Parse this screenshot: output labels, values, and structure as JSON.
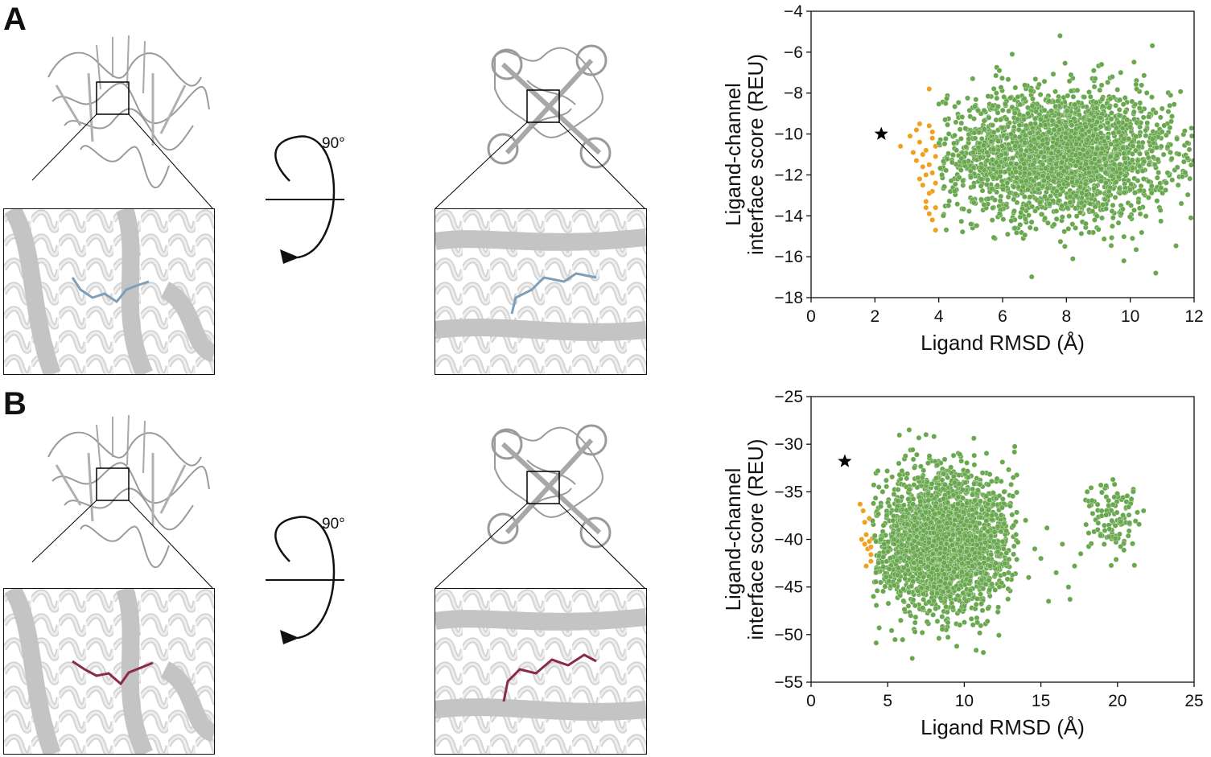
{
  "panels": [
    {
      "letter": "A",
      "rotation_label": "90°",
      "ligand_color": "#7f9fb8",
      "chart_data": {
        "type": "scatter",
        "xlabel": "Ligand RMSD (Å)",
        "ylabel_line1": "Ligand-channel",
        "ylabel_line2": "interface score (REU)",
        "xlim": [
          0,
          12
        ],
        "ylim": [
          -18,
          -4
        ],
        "xticks": [
          0,
          2,
          4,
          6,
          8,
          10,
          12
        ],
        "yticks": [
          -4,
          -6,
          -8,
          -10,
          -12,
          -14,
          -16,
          -18
        ],
        "reference": {
          "marker": "star",
          "x": 2.2,
          "y": -10.0,
          "color": "#000000"
        },
        "series": [
          {
            "color": "#f0a020",
            "points": [
              [
                2.8,
                -10.6
              ],
              [
                3.1,
                -10.1
              ],
              [
                3.2,
                -10.9
              ],
              [
                3.3,
                -9.8
              ],
              [
                3.4,
                -10.4
              ],
              [
                3.4,
                -9.5
              ],
              [
                3.5,
                -11.0
              ],
              [
                3.5,
                -12.5
              ],
              [
                3.6,
                -13.3
              ],
              [
                3.6,
                -10.8
              ],
              [
                3.6,
                -12.0
              ],
              [
                3.7,
                -7.8
              ],
              [
                3.7,
                -9.6
              ],
              [
                3.7,
                -11.5
              ],
              [
                3.7,
                -13.9
              ],
              [
                3.8,
                -12.8
              ],
              [
                3.8,
                -10.2
              ],
              [
                3.8,
                -11.9
              ],
              [
                3.8,
                -14.2
              ],
              [
                3.8,
                -9.9
              ],
              [
                3.9,
                -12.4
              ],
              [
                3.9,
                -13.6
              ],
              [
                3.9,
                -11.1
              ],
              [
                3.9,
                -14.7
              ],
              [
                3.9,
                -10.6
              ],
              [
                3.6,
                -13.6
              ],
              [
                3.5,
                -11.6
              ],
              [
                3.4,
                -12.2
              ],
              [
                3.7,
                -12.9
              ],
              [
                3.3,
                -11.3
              ]
            ]
          },
          {
            "color": "#6aa84f",
            "cloud": {
              "x_center": 7.8,
              "x_spread": 1.75,
              "y_center": -11.0,
              "y_spread": 1.55,
              "x_min": 4.0,
              "x_max": 12.0,
              "y_min": -17.0,
              "y_max": -5.2,
              "count": 2600
            },
            "outliers": [
              [
                7.8,
                -5.2
              ],
              [
                6.3,
                -6.1
              ],
              [
                9.1,
                -6.6
              ],
              [
                5.9,
                -6.9
              ],
              [
                10.2,
                -7.8
              ],
              [
                11.0,
                -9.9
              ],
              [
                11.5,
                -12.5
              ],
              [
                11.9,
                -14.1
              ],
              [
                10.8,
                -16.8
              ],
              [
                9.8,
                -16.2
              ],
              [
                8.2,
                -16.1
              ],
              [
                4.3,
                -13.5
              ],
              [
                4.1,
                -12.0
              ],
              [
                4.2,
                -9.3
              ],
              [
                11.3,
                -11.2
              ],
              [
                11.6,
                -13.4
              ]
            ]
          }
        ]
      }
    },
    {
      "letter": "B",
      "rotation_label": "90°",
      "ligand_color": "#8a2a4a",
      "chart_data": {
        "type": "scatter",
        "xlabel": "Ligand RMSD (Å)",
        "ylabel_line1": "Ligand-channel",
        "ylabel_line2": "interface score (REU)",
        "xlim": [
          0,
          25
        ],
        "ylim": [
          -55,
          -25
        ],
        "xticks": [
          0,
          5,
          10,
          15,
          20,
          25
        ],
        "yticks": [
          -25,
          -30,
          -35,
          -40,
          -45,
          -50,
          -55
        ],
        "reference": {
          "marker": "star",
          "x": 2.2,
          "y": -31.8,
          "color": "#000000"
        },
        "series": [
          {
            "color": "#f0a020",
            "points": [
              [
                3.2,
                -36.3
              ],
              [
                3.4,
                -37.0
              ],
              [
                3.3,
                -40.0
              ],
              [
                3.5,
                -40.5
              ],
              [
                3.6,
                -39.5
              ],
              [
                3.7,
                -41.0
              ],
              [
                3.8,
                -40.2
              ],
              [
                3.9,
                -41.6
              ],
              [
                3.9,
                -42.3
              ],
              [
                4.0,
                -39.9
              ],
              [
                3.5,
                -38.2
              ],
              [
                3.6,
                -42.8
              ],
              [
                3.8,
                -37.8
              ],
              [
                3.9,
                -40.8
              ]
            ]
          },
          {
            "color": "#6aa84f",
            "cloud": {
              "x_center": 8.6,
              "x_spread": 2.2,
              "y_center": -40.2,
              "y_spread": 3.6,
              "x_min": 4.0,
              "x_max": 13.5,
              "y_min": -52.5,
              "y_max": -28.5,
              "count": 2400
            },
            "outliers": [
              [
                6.4,
                -28.5
              ],
              [
                7.5,
                -29.0
              ],
              [
                6.6,
                -52.5
              ],
              [
                13.0,
                -36.5
              ],
              [
                13.5,
                -40.3
              ],
              [
                14.0,
                -38.0
              ],
              [
                14.6,
                -41.0
              ],
              [
                15.0,
                -42.0
              ],
              [
                15.4,
                -38.8
              ],
              [
                16.0,
                -43.5
              ],
              [
                16.4,
                -40.5
              ],
              [
                16.8,
                -45.0
              ],
              [
                17.2,
                -42.8
              ],
              [
                16.9,
                -46.3
              ],
              [
                15.5,
                -46.5
              ],
              [
                14.2,
                -44.0
              ],
              [
                17.6,
                -41.5
              ],
              [
                12.6,
                -35.0
              ],
              [
                13.2,
                -33.5
              ]
            ],
            "cluster": {
              "x_center": 19.6,
              "x_spread": 0.9,
              "y_center": -37.2,
              "y_spread": 2.3,
              "x_min": 17.6,
              "x_max": 22.0,
              "y_min": -43.5,
              "y_max": -32.5,
              "count": 110
            }
          }
        ]
      }
    }
  ]
}
